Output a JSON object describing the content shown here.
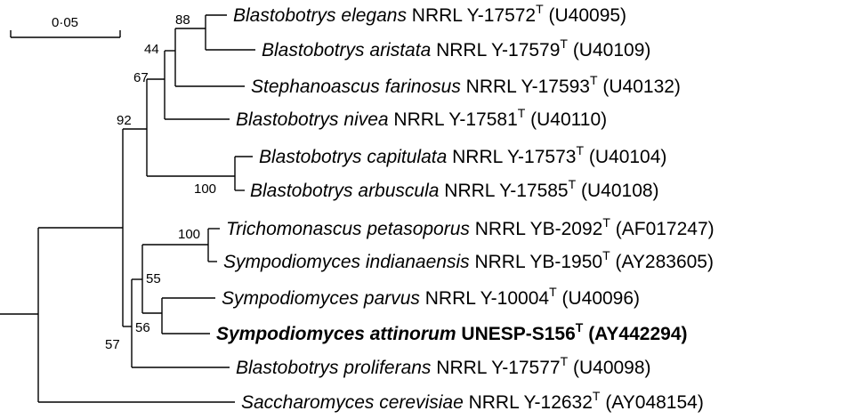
{
  "scale_bar": {
    "label": "0·05"
  },
  "bootstrap": {
    "b88": "88",
    "b44": "44",
    "b67": "67",
    "b92": "92",
    "b100a": "100",
    "b100b": "100",
    "b55": "55",
    "b56": "56",
    "b57": "57"
  },
  "taxa": [
    {
      "genus_species": "Blastobotrys elegans",
      "strain": " NRRL Y-17572",
      "type_mark": "T",
      "accession": " (U40095)",
      "bold": false
    },
    {
      "genus_species": "Blastobotrys aristata",
      "strain": " NRRL Y-17579",
      "type_mark": "T",
      "accession": " (U40109)",
      "bold": false
    },
    {
      "genus_species": "Stephanoascus farinosus",
      "strain": " NRRL Y-17593",
      "type_mark": "T",
      "accession": " (U40132)",
      "bold": false
    },
    {
      "genus_species": "Blastobotrys nivea",
      "strain": " NRRL Y-17581",
      "type_mark": "T",
      "accession": " (U40110)",
      "bold": false
    },
    {
      "genus_species": "Blastobotrys capitulata",
      "strain": " NRRL Y-17573",
      "type_mark": "T",
      "accession": " (U40104)",
      "bold": false
    },
    {
      "genus_species": "Blastobotrys arbuscula",
      "strain": " NRRL Y-17585",
      "type_mark": "T",
      "accession": " (U40108)",
      "bold": false
    },
    {
      "genus_species": "Trichomonascus petasoporus",
      "strain": " NRRL YB-2092",
      "type_mark": "T",
      "accession": " (AF017247)",
      "bold": false
    },
    {
      "genus_species": "Sympodiomyces indianaensis",
      "strain": " NRRL YB-1950",
      "type_mark": "T",
      "accession": " (AY283605)",
      "bold": false
    },
    {
      "genus_species": "Sympodiomyces parvus",
      "strain": " NRRL Y-10004",
      "type_mark": "T",
      "accession": " (U40096)",
      "bold": false
    },
    {
      "genus_species": "Sympodiomyces attinorum",
      "strain": " UNESP-S156",
      "type_mark": "T",
      "accession": " (AY442294)",
      "bold": true
    },
    {
      "genus_species": "Blastobotrys proliferans",
      "strain": " NRRL Y-17577",
      "type_mark": "T",
      "accession": " (U40098)",
      "bold": false
    },
    {
      "genus_species": "Saccharomyces cerevisiae",
      "strain": " NRRL Y-12632",
      "type_mark": "T",
      "accession": " (AY048154)",
      "bold": false
    }
  ]
}
